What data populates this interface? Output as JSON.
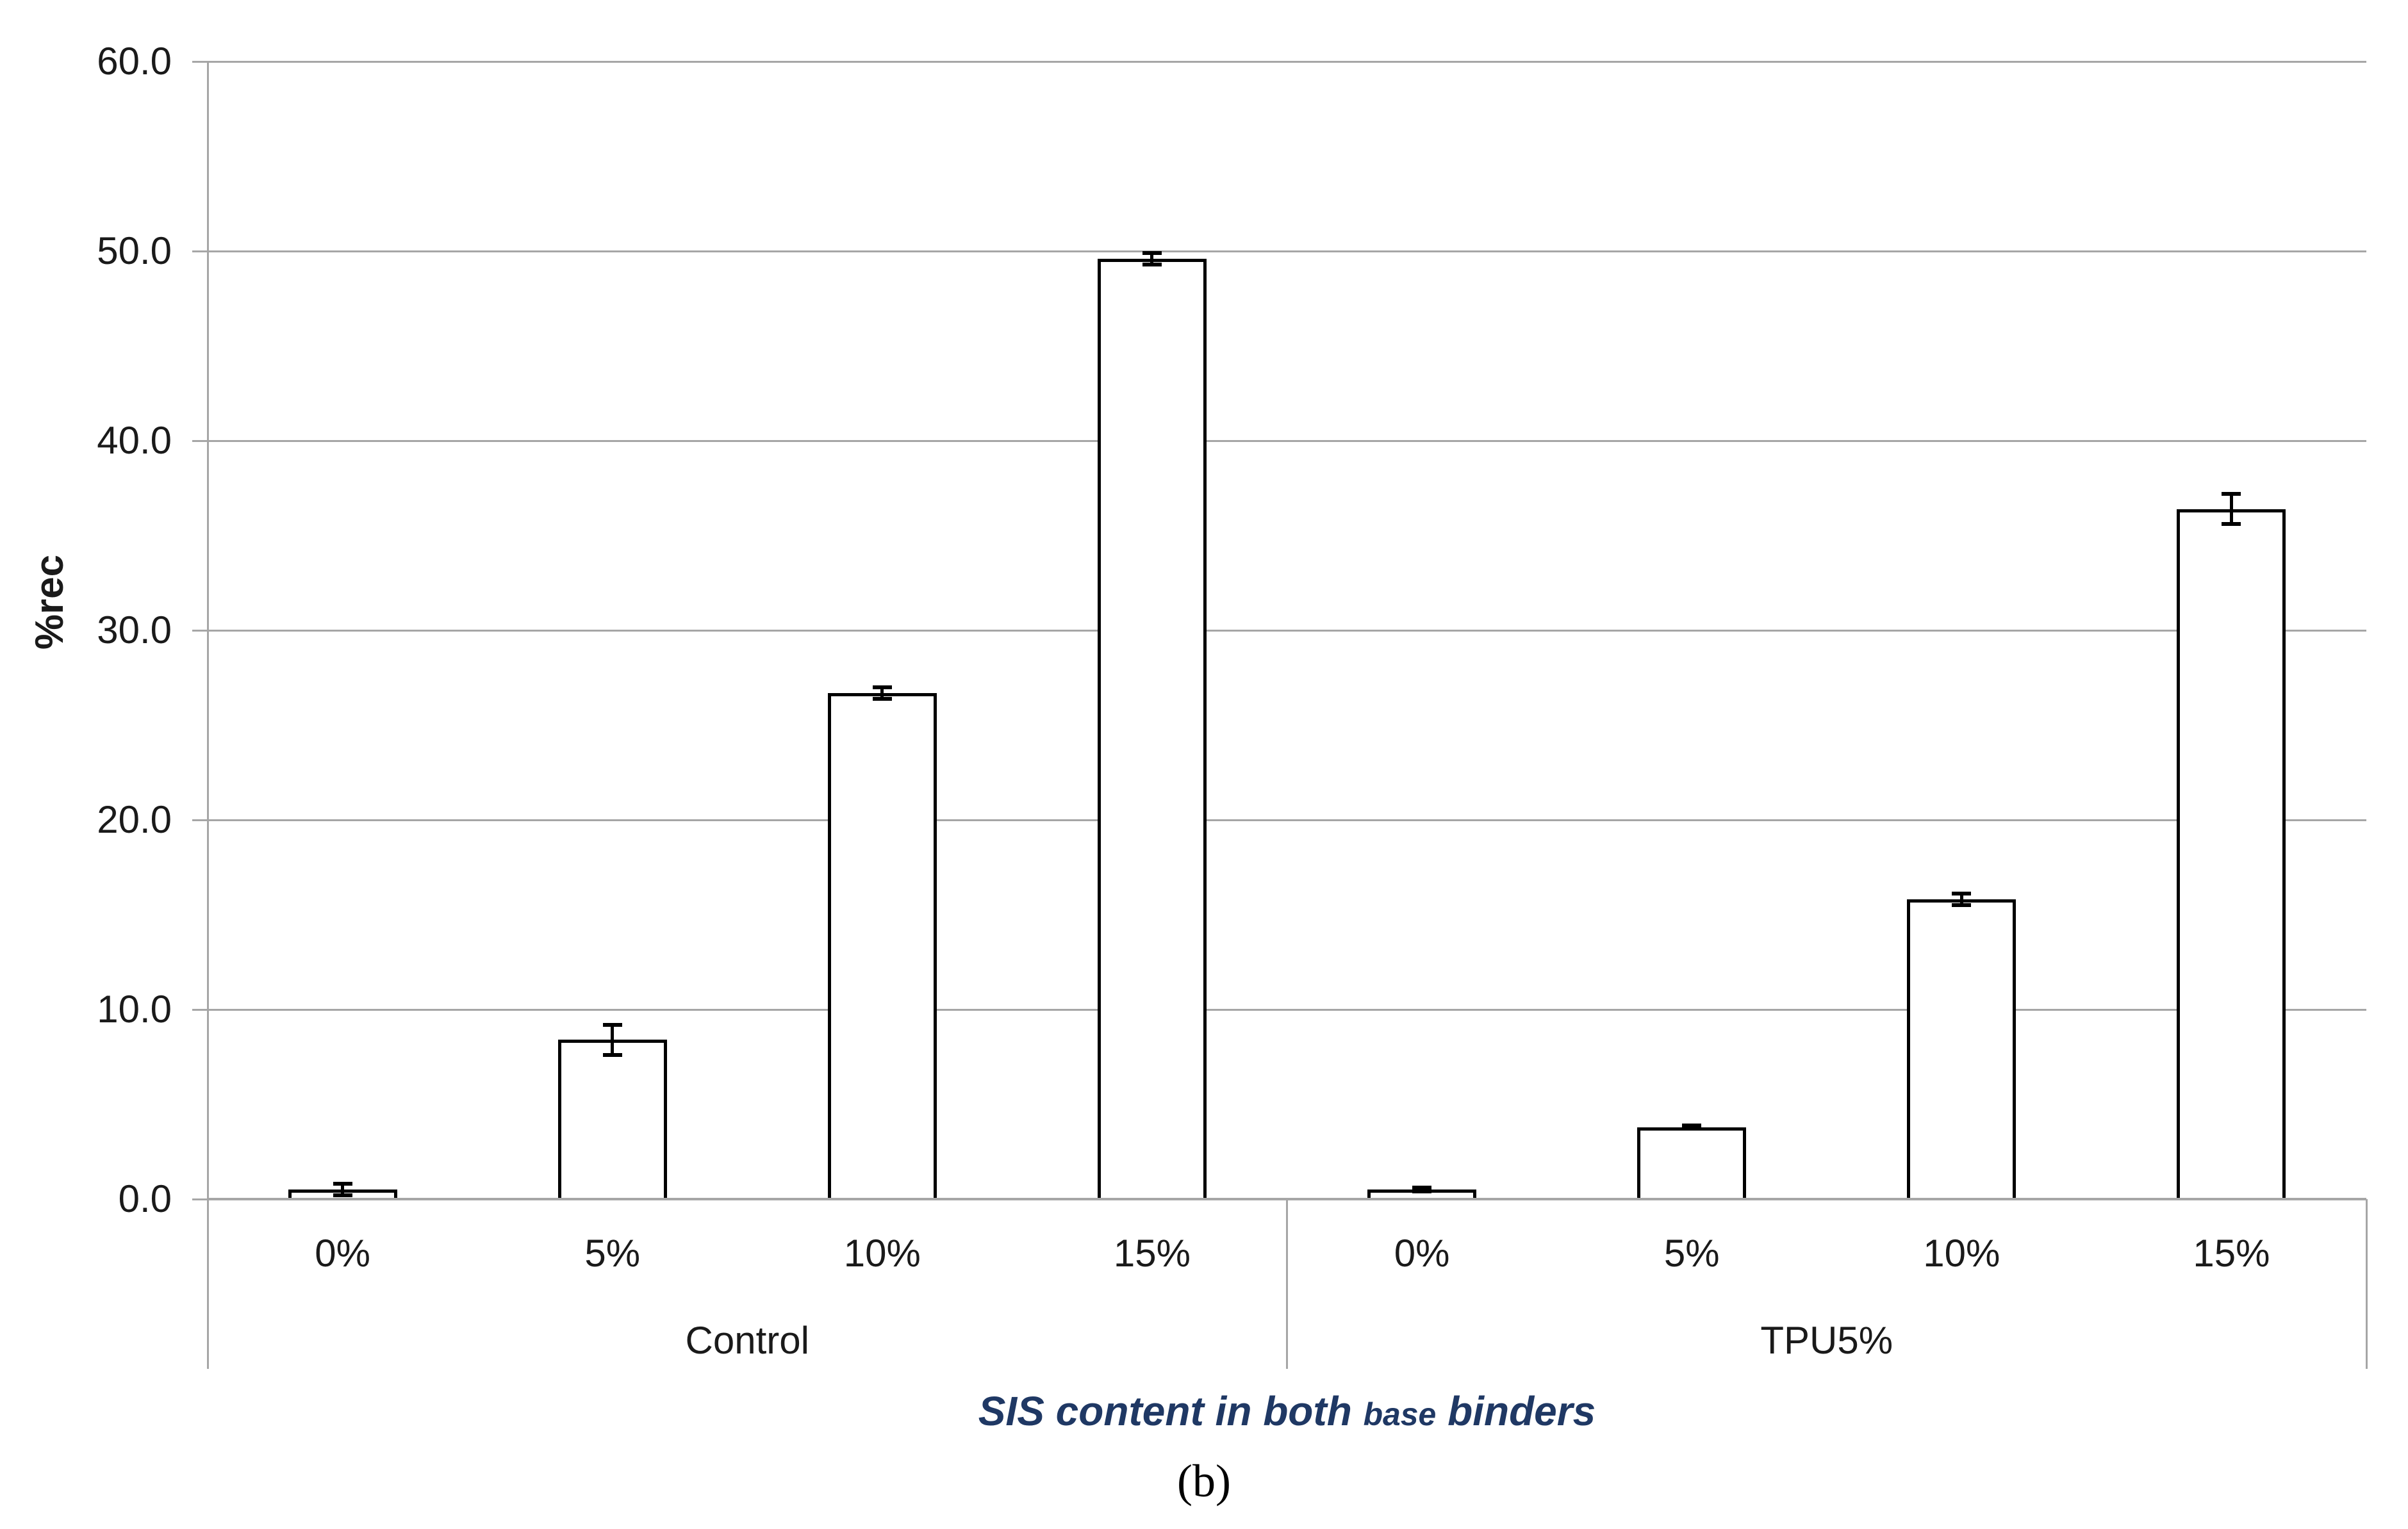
{
  "chart_data": {
    "type": "bar",
    "ylabel": "%rec",
    "xlabel": "SIS content in both base binders",
    "xlabel_parts": {
      "pre": "SIS content in both ",
      "small": "base",
      "post": " binders"
    },
    "caption": "(b)",
    "ylim": [
      0,
      60
    ],
    "ytick_step": 10,
    "ytick_labels": [
      "0.0",
      "10.0",
      "20.0",
      "30.0",
      "40.0",
      "50.0",
      "60.0"
    ],
    "grid": true,
    "legend": "none",
    "error_bars": true,
    "bar_fill": "#ffffff",
    "bar_border_color": "#000000",
    "gridline_color": "#a6a6a6",
    "axis_color": "#a6a6a6",
    "text_color": "#1a1a1a",
    "xlabel_color": "#1f3864",
    "groups": [
      {
        "label": "Control",
        "categories": [
          "0%",
          "5%",
          "10%",
          "15%"
        ],
        "values": [
          0.5,
          8.4,
          26.7,
          49.6
        ],
        "errors": [
          0.3,
          0.8,
          0.3,
          0.3
        ]
      },
      {
        "label": "TPU5%",
        "categories": [
          "0%",
          "5%",
          "10%",
          "15%"
        ],
        "values": [
          0.5,
          3.8,
          15.8,
          36.4
        ],
        "errors": [
          0.1,
          0.1,
          0.3,
          0.8
        ]
      }
    ]
  }
}
